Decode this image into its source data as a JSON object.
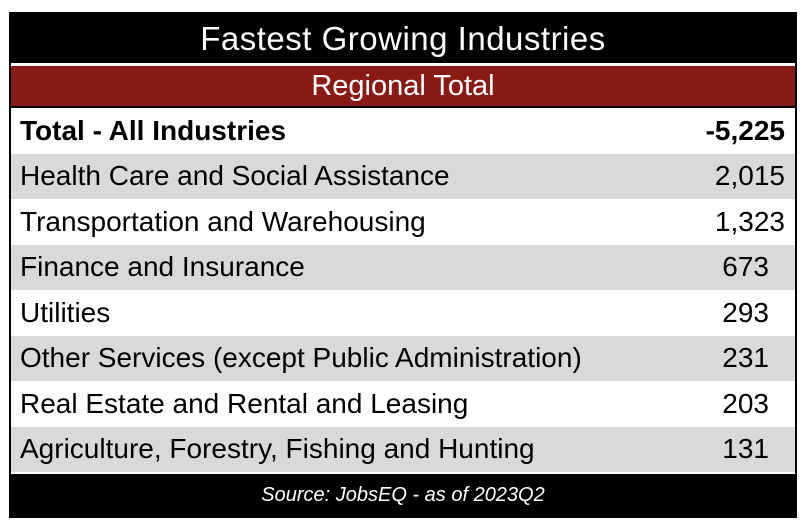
{
  "title": "Fastest Growing Industries",
  "subtitle": "Regional Total",
  "total_row": {
    "label": "Total - All Industries",
    "value": "-5,225"
  },
  "rows": [
    {
      "label": "Health Care and Social Assistance",
      "value": "2,015"
    },
    {
      "label": "Transportation and Warehousing",
      "value": "1,323"
    },
    {
      "label": "Finance and Insurance",
      "value": "673"
    },
    {
      "label": "Utilities",
      "value": "293"
    },
    {
      "label": "Other Services (except Public Administration)",
      "value": "231"
    },
    {
      "label": "Real Estate and Rental and Leasing",
      "value": "203"
    },
    {
      "label": "Agriculture, Forestry, Fishing and Hunting",
      "value": "131"
    }
  ],
  "source": "Source: JobsEQ - as of 2023Q2",
  "colors": {
    "header_bg": "#000000",
    "subheader_bg": "#8a1a14",
    "shade": "#d9d9d9"
  }
}
